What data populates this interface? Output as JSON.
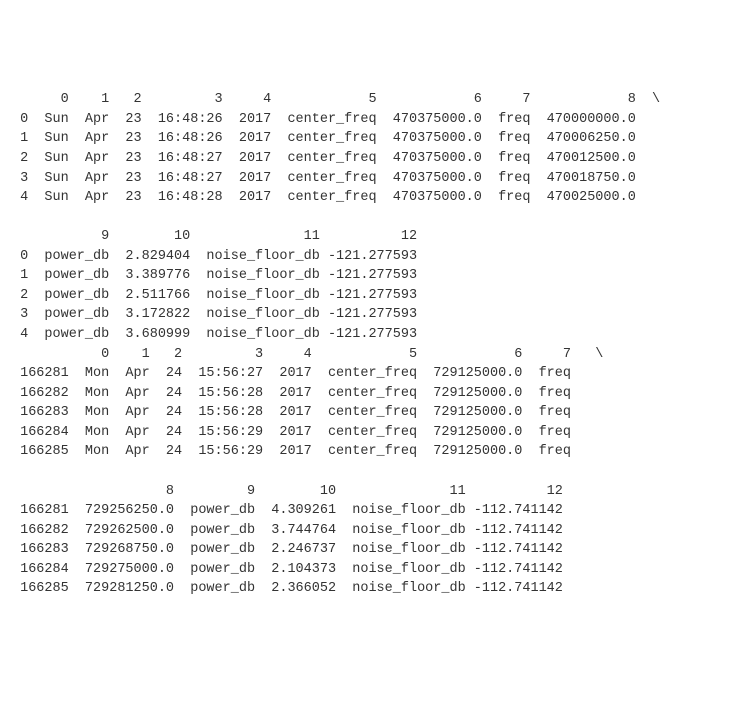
{
  "block1": {
    "header": {
      "c0": "0",
      "c1": "1",
      "c2": "2",
      "c3": "3",
      "c4": "4",
      "c5": "5",
      "c6": "6",
      "c7": "7",
      "c8": "8",
      "slash": "\\"
    },
    "rows": [
      {
        "idx": "0",
        "c0": "Sun",
        "c1": "Apr",
        "c2": "23",
        "c3": "16:48:26",
        "c4": "2017",
        "c5": "center_freq",
        "c6": "470375000.0",
        "c7": "freq",
        "c8": "470000000.0"
      },
      {
        "idx": "1",
        "c0": "Sun",
        "c1": "Apr",
        "c2": "23",
        "c3": "16:48:26",
        "c4": "2017",
        "c5": "center_freq",
        "c6": "470375000.0",
        "c7": "freq",
        "c8": "470006250.0"
      },
      {
        "idx": "2",
        "c0": "Sun",
        "c1": "Apr",
        "c2": "23",
        "c3": "16:48:27",
        "c4": "2017",
        "c5": "center_freq",
        "c6": "470375000.0",
        "c7": "freq",
        "c8": "470012500.0"
      },
      {
        "idx": "3",
        "c0": "Sun",
        "c1": "Apr",
        "c2": "23",
        "c3": "16:48:27",
        "c4": "2017",
        "c5": "center_freq",
        "c6": "470375000.0",
        "c7": "freq",
        "c8": "470018750.0"
      },
      {
        "idx": "4",
        "c0": "Sun",
        "c1": "Apr",
        "c2": "23",
        "c3": "16:48:28",
        "c4": "2017",
        "c5": "center_freq",
        "c6": "470375000.0",
        "c7": "freq",
        "c8": "470025000.0"
      }
    ]
  },
  "block2": {
    "header": {
      "c9": "9",
      "c10": "10",
      "c11": "11",
      "c12": "12"
    },
    "rows": [
      {
        "idx": "0",
        "c9": "power_db",
        "c10": "2.829404",
        "c11": "noise_floor_db",
        "c12": "-121.277593"
      },
      {
        "idx": "1",
        "c9": "power_db",
        "c10": "3.389776",
        "c11": "noise_floor_db",
        "c12": "-121.277593"
      },
      {
        "idx": "2",
        "c9": "power_db",
        "c10": "2.511766",
        "c11": "noise_floor_db",
        "c12": "-121.277593"
      },
      {
        "idx": "3",
        "c9": "power_db",
        "c10": "3.172822",
        "c11": "noise_floor_db",
        "c12": "-121.277593"
      },
      {
        "idx": "4",
        "c9": "power_db",
        "c10": "3.680999",
        "c11": "noise_floor_db",
        "c12": "-121.277593"
      }
    ]
  },
  "block3": {
    "header": {
      "c0": "0",
      "c1": "1",
      "c2": "2",
      "c3": "3",
      "c4": "4",
      "c5": "5",
      "c6": "6",
      "c7": "7",
      "slash": "\\"
    },
    "rows": [
      {
        "idx": "166281",
        "c0": "Mon",
        "c1": "Apr",
        "c2": "24",
        "c3": "15:56:27",
        "c4": "2017",
        "c5": "center_freq",
        "c6": "729125000.0",
        "c7": "freq"
      },
      {
        "idx": "166282",
        "c0": "Mon",
        "c1": "Apr",
        "c2": "24",
        "c3": "15:56:28",
        "c4": "2017",
        "c5": "center_freq",
        "c6": "729125000.0",
        "c7": "freq"
      },
      {
        "idx": "166283",
        "c0": "Mon",
        "c1": "Apr",
        "c2": "24",
        "c3": "15:56:28",
        "c4": "2017",
        "c5": "center_freq",
        "c6": "729125000.0",
        "c7": "freq"
      },
      {
        "idx": "166284",
        "c0": "Mon",
        "c1": "Apr",
        "c2": "24",
        "c3": "15:56:29",
        "c4": "2017",
        "c5": "center_freq",
        "c6": "729125000.0",
        "c7": "freq"
      },
      {
        "idx": "166285",
        "c0": "Mon",
        "c1": "Apr",
        "c2": "24",
        "c3": "15:56:29",
        "c4": "2017",
        "c5": "center_freq",
        "c6": "729125000.0",
        "c7": "freq"
      }
    ]
  },
  "block4": {
    "header": {
      "c8": "8",
      "c9": "9",
      "c10": "10",
      "c11": "11",
      "c12": "12"
    },
    "rows": [
      {
        "idx": "166281",
        "c8": "729256250.0",
        "c9": "power_db",
        "c10": "4.309261",
        "c11": "noise_floor_db",
        "c12": "-112.741142"
      },
      {
        "idx": "166282",
        "c8": "729262500.0",
        "c9": "power_db",
        "c10": "3.744764",
        "c11": "noise_floor_db",
        "c12": "-112.741142"
      },
      {
        "idx": "166283",
        "c8": "729268750.0",
        "c9": "power_db",
        "c10": "2.246737",
        "c11": "noise_floor_db",
        "c12": "-112.741142"
      },
      {
        "idx": "166284",
        "c8": "729275000.0",
        "c9": "power_db",
        "c10": "2.104373",
        "c11": "noise_floor_db",
        "c12": "-112.741142"
      },
      {
        "idx": "166285",
        "c8": "729281250.0",
        "c9": "power_db",
        "c10": "2.366052",
        "c11": "noise_floor_db",
        "c12": "-112.741142"
      }
    ]
  }
}
